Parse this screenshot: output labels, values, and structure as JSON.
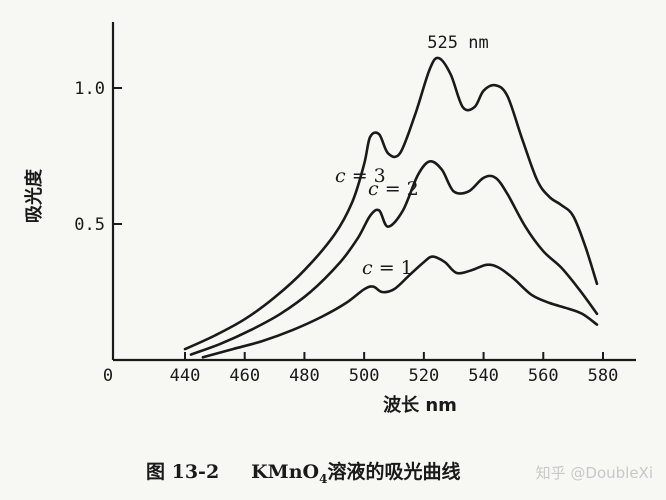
{
  "chart_data": {
    "type": "line",
    "title": "",
    "xlabel": "波长 nm",
    "ylabel": "吸光度",
    "xlim": [
      440,
      580
    ],
    "ylim": [
      0,
      1.2
    ],
    "x_origin_label": "0",
    "x_ticks": [
      "440",
      "460",
      "480",
      "500",
      "520",
      "540",
      "560",
      "580"
    ],
    "y_ticks": [
      "0.5",
      "1.0"
    ],
    "grid": false,
    "annotation": "525 nm",
    "series": [
      {
        "name": "c = 3",
        "x": [
          440,
          450,
          460,
          470,
          480,
          490,
          496,
          500,
          502,
          505,
          508,
          512,
          517,
          522,
          525,
          529,
          533,
          537,
          540,
          544,
          548,
          553,
          558,
          562,
          566,
          570,
          574,
          578
        ],
        "y": [
          0.04,
          0.09,
          0.15,
          0.23,
          0.33,
          0.46,
          0.58,
          0.72,
          0.82,
          0.83,
          0.76,
          0.76,
          0.9,
          1.07,
          1.11,
          1.05,
          0.93,
          0.93,
          0.99,
          1.01,
          0.97,
          0.81,
          0.66,
          0.6,
          0.57,
          0.53,
          0.42,
          0.28
        ]
      },
      {
        "name": "c = 2",
        "x": [
          442,
          452,
          462,
          472,
          482,
          492,
          498,
          502,
          505,
          508,
          513,
          518,
          522,
          526,
          530,
          535,
          540,
          544,
          548,
          554,
          560,
          566,
          572,
          578
        ],
        "y": [
          0.02,
          0.06,
          0.11,
          0.17,
          0.25,
          0.36,
          0.45,
          0.53,
          0.55,
          0.49,
          0.55,
          0.68,
          0.73,
          0.7,
          0.62,
          0.62,
          0.67,
          0.67,
          0.61,
          0.49,
          0.4,
          0.34,
          0.26,
          0.17
        ]
      },
      {
        "name": "c = 1",
        "x": [
          446,
          456,
          466,
          476,
          486,
          494,
          500,
          503,
          506,
          510,
          515,
          520,
          523,
          527,
          531,
          536,
          541,
          545,
          550,
          556,
          562,
          568,
          573,
          578
        ],
        "y": [
          0.01,
          0.04,
          0.07,
          0.11,
          0.16,
          0.21,
          0.26,
          0.27,
          0.25,
          0.26,
          0.31,
          0.36,
          0.38,
          0.36,
          0.32,
          0.33,
          0.35,
          0.34,
          0.3,
          0.24,
          0.21,
          0.19,
          0.17,
          0.13
        ]
      }
    ]
  },
  "caption": {
    "figure_no": "图  13-2",
    "compound_prefix": "KMnO",
    "subscript": "4",
    "description": "溶液的吸光曲线"
  },
  "watermark": "知乎 @DoubleXi"
}
